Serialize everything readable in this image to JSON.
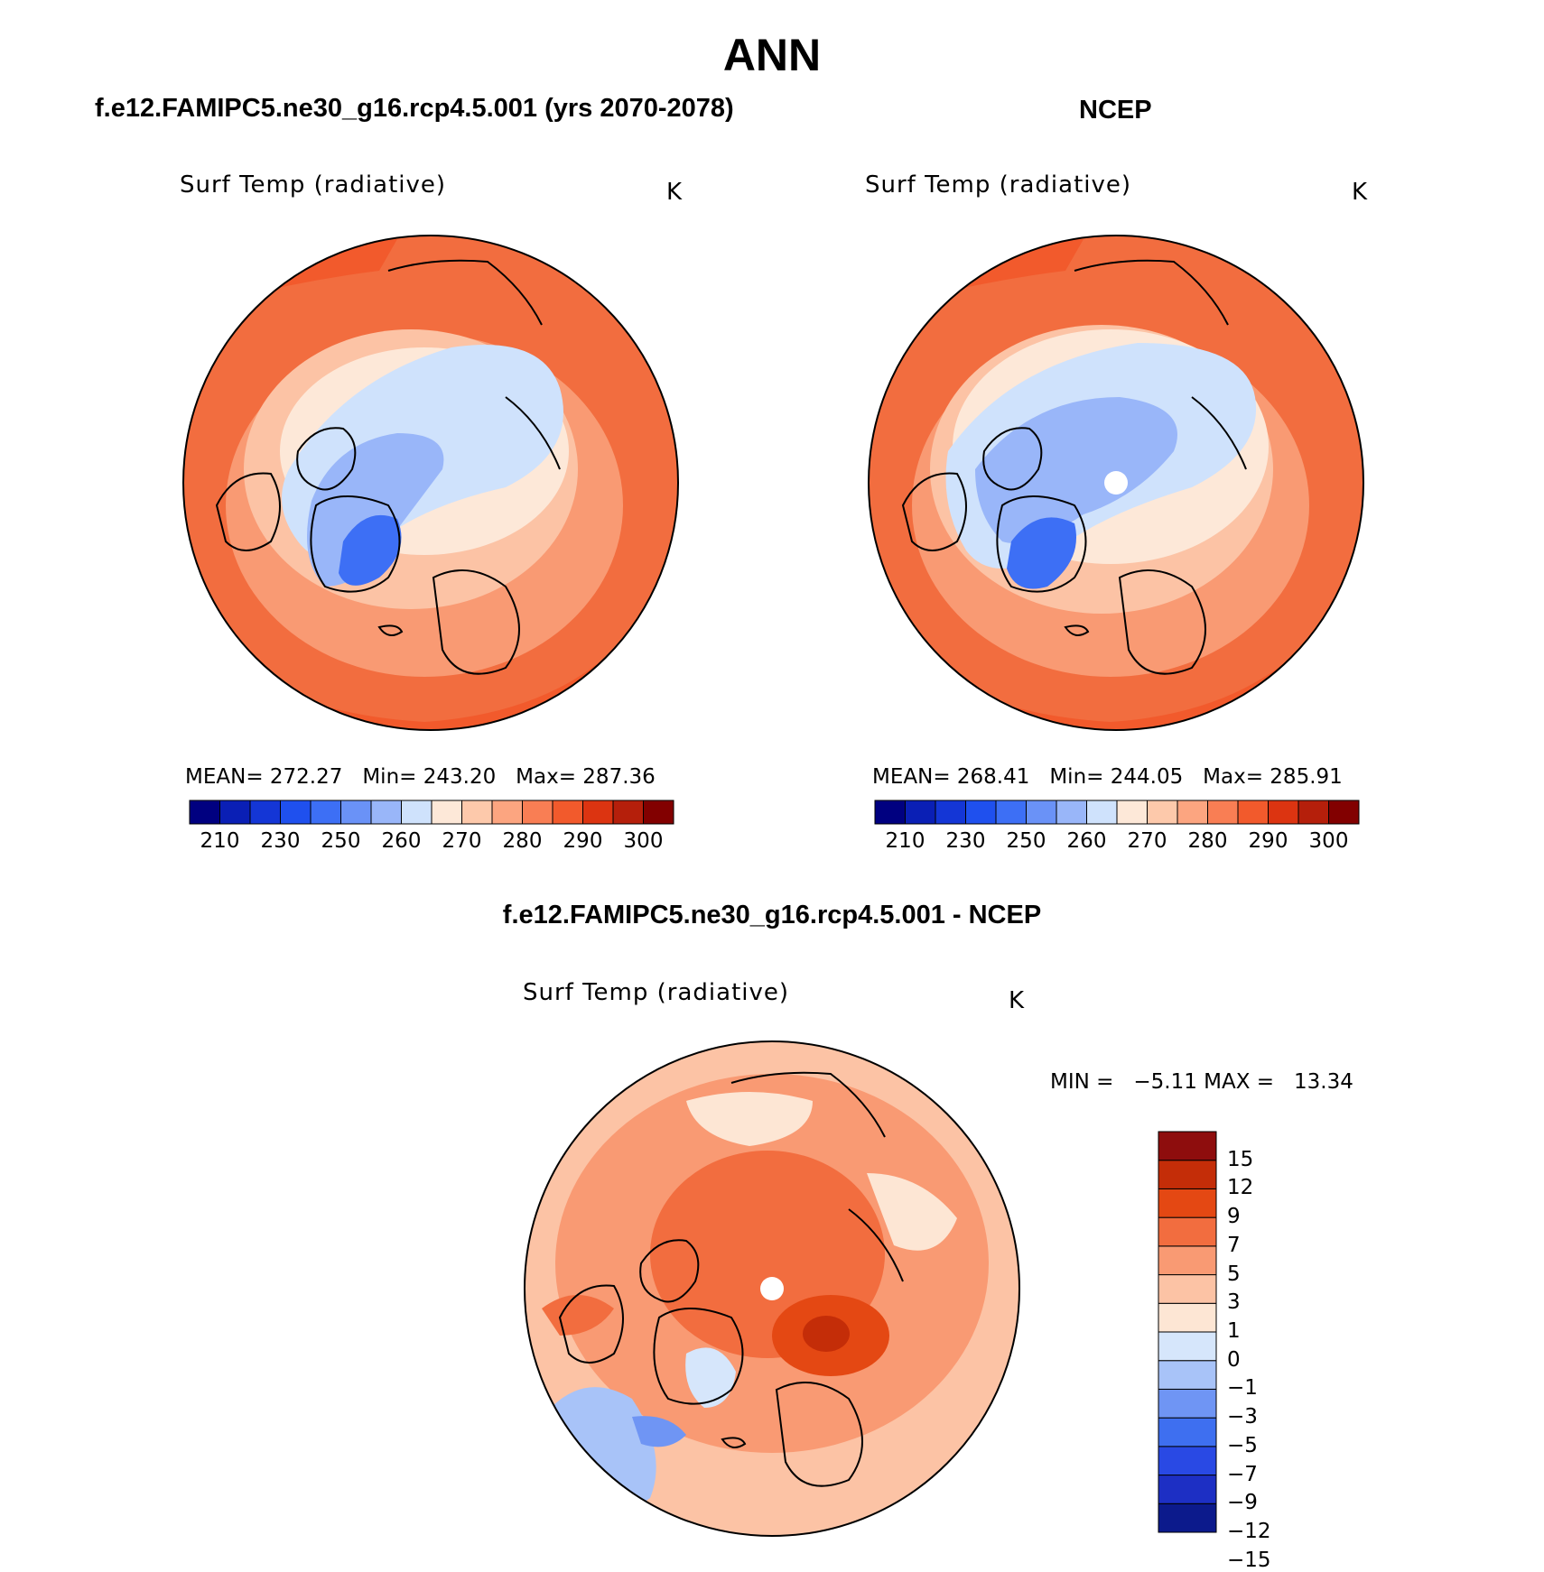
{
  "figure_title": "ANN",
  "colors": {
    "abs_scale": [
      "#000080",
      "#0a1fb5",
      "#1436d6",
      "#1f50ee",
      "#3d6ff5",
      "#6a92f7",
      "#99b6f9",
      "#cfe2fc",
      "#fde8d8",
      "#fdc9ab",
      "#fca580",
      "#f97e54",
      "#f25a2c",
      "#dc3411",
      "#b51f0b",
      "#820000"
    ],
    "diff_scale": [
      "#0c1a8c",
      "#1d2fc4",
      "#2949e4",
      "#3e6ff0",
      "#6f95f4",
      "#a8c3f8",
      "#d6e6fb",
      "#fde6d4",
      "#fcc3a5",
      "#f99a73",
      "#f26d3f",
      "#e44813",
      "#c42d08",
      "#8e0d0d"
    ],
    "coastline": "#000000"
  },
  "chart_data": [
    {
      "type": "contour_map",
      "panel": "model",
      "title": "f.e12.FAMIPC5.ne30_g16.rcp4.5.001 (yrs 2070-2078)",
      "variable": "Surf Temp (radiative)",
      "units": "K",
      "projection": "north polar stereographic",
      "stats": {
        "mean_label": "MEAN=",
        "mean": "272.27",
        "min_label": "Min=",
        "min": "243.20",
        "max_label": "Max=",
        "max": "287.36"
      },
      "colorbar": {
        "orientation": "horizontal",
        "levels": [
          210,
          220,
          230,
          240,
          250,
          255,
          260,
          265,
          270,
          275,
          280,
          285,
          290,
          295,
          300
        ],
        "tick_labels": [
          "210",
          "230",
          "250",
          "260",
          "270",
          "280",
          "290",
          "300"
        ]
      }
    },
    {
      "type": "contour_map",
      "panel": "obs",
      "title": "NCEP",
      "variable": "Surf Temp (radiative)",
      "units": "K",
      "projection": "north polar stereographic",
      "stats": {
        "mean_label": "MEAN=",
        "mean": "268.41",
        "min_label": "Min=",
        "min": "244.05",
        "max_label": "Max=",
        "max": "285.91"
      },
      "colorbar": {
        "orientation": "horizontal",
        "levels": [
          210,
          220,
          230,
          240,
          250,
          255,
          260,
          265,
          270,
          275,
          280,
          285,
          290,
          295,
          300
        ],
        "tick_labels": [
          "210",
          "230",
          "250",
          "260",
          "270",
          "280",
          "290",
          "300"
        ]
      }
    },
    {
      "type": "contour_map",
      "panel": "diff",
      "title": "f.e12.FAMIPC5.ne30_g16.rcp4.5.001 - NCEP",
      "variable": "Surf Temp (radiative)",
      "units": "K",
      "projection": "north polar stereographic",
      "stats": {
        "min_label": "MIN =",
        "min": "−5.11",
        "max_label": "MAX =",
        "max": "13.34"
      },
      "colorbar": {
        "orientation": "vertical",
        "levels": [
          -15,
          -12,
          -9,
          -7,
          -5,
          -3,
          -1,
          0,
          1,
          3,
          5,
          7,
          9,
          12,
          15
        ],
        "tick_labels": [
          "15",
          "12",
          "9",
          "7",
          "5",
          "3",
          "1",
          "0",
          "−1",
          "−3",
          "−5",
          "−7",
          "−9",
          "−12",
          "−15"
        ]
      }
    }
  ]
}
